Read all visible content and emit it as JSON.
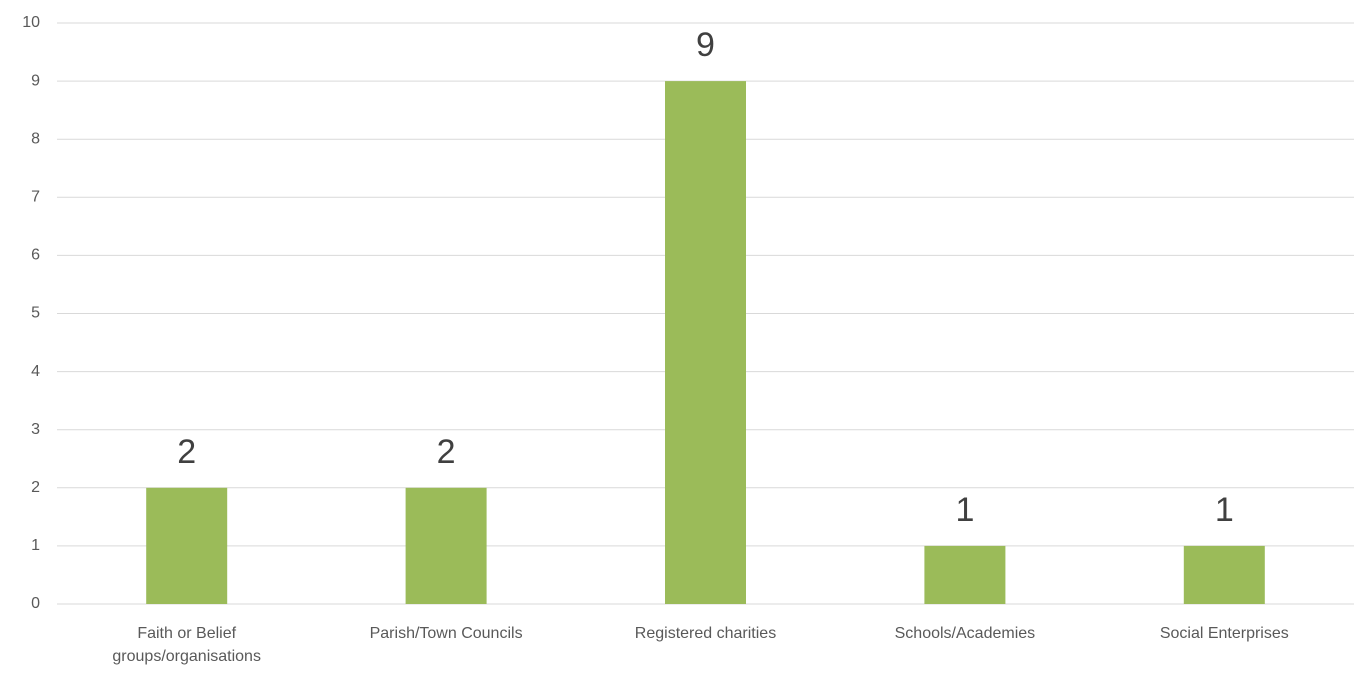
{
  "chart_data": {
    "type": "bar",
    "categories": [
      "Faith or Belief groups/organisations",
      "Parish/Town Councils",
      "Registered charities",
      "Schools/Academies",
      "Social Enterprises"
    ],
    "values": [
      2,
      2,
      9,
      1,
      1
    ],
    "color": "#9bbb59",
    "ylim": [
      0,
      10
    ],
    "yticks": [
      0,
      1,
      2,
      3,
      4,
      5,
      6,
      7,
      8,
      9,
      10
    ],
    "grid": true
  }
}
